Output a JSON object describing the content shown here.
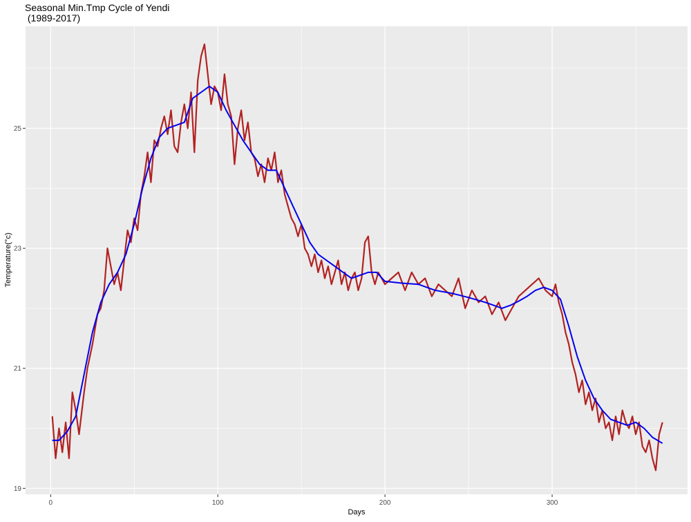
{
  "chart_data": {
    "type": "line",
    "title_line1": "Seasonal Min.Tmp Cycle of Yendi",
    "title_line2": " (1989-2017)",
    "xlabel": "Days",
    "ylabel": "Temperature(°c)",
    "xlim": [
      -15,
      381
    ],
    "ylim": [
      18.9,
      26.7
    ],
    "x_ticks": [
      0,
      100,
      200,
      300
    ],
    "y_ticks": [
      19,
      21,
      23,
      25
    ],
    "x_tick_labels": [
      "0",
      "100",
      "200",
      "300"
    ],
    "y_tick_labels": [
      "19",
      "21",
      "23",
      "25"
    ],
    "grid": true,
    "legend": "none",
    "series": [
      {
        "color": "#B22222",
        "anchors": [
          [
            1,
            20.2
          ],
          [
            3,
            19.5
          ],
          [
            5,
            20.0
          ],
          [
            7,
            19.6
          ],
          [
            9,
            20.1
          ],
          [
            11,
            19.5
          ],
          [
            13,
            20.6
          ],
          [
            15,
            20.3
          ],
          [
            17,
            19.9
          ],
          [
            20,
            20.6
          ],
          [
            22,
            21.0
          ],
          [
            25,
            21.4
          ],
          [
            28,
            21.9
          ],
          [
            30,
            22.0
          ],
          [
            32,
            22.3
          ],
          [
            34,
            23.0
          ],
          [
            36,
            22.7
          ],
          [
            38,
            22.4
          ],
          [
            40,
            22.6
          ],
          [
            42,
            22.3
          ],
          [
            44,
            22.8
          ],
          [
            46,
            23.3
          ],
          [
            48,
            23.1
          ],
          [
            50,
            23.5
          ],
          [
            52,
            23.3
          ],
          [
            54,
            23.9
          ],
          [
            56,
            24.2
          ],
          [
            58,
            24.6
          ],
          [
            60,
            24.1
          ],
          [
            62,
            24.8
          ],
          [
            64,
            24.7
          ],
          [
            66,
            25.0
          ],
          [
            68,
            25.2
          ],
          [
            70,
            24.9
          ],
          [
            72,
            25.3
          ],
          [
            74,
            24.7
          ],
          [
            76,
            24.6
          ],
          [
            78,
            25.1
          ],
          [
            80,
            25.4
          ],
          [
            82,
            25.0
          ],
          [
            84,
            25.6
          ],
          [
            86,
            24.6
          ],
          [
            88,
            25.8
          ],
          [
            90,
            26.2
          ],
          [
            92,
            26.4
          ],
          [
            94,
            25.9
          ],
          [
            96,
            25.4
          ],
          [
            98,
            25.7
          ],
          [
            100,
            25.6
          ],
          [
            102,
            25.3
          ],
          [
            104,
            25.9
          ],
          [
            106,
            25.4
          ],
          [
            108,
            25.2
          ],
          [
            110,
            24.4
          ],
          [
            112,
            25.0
          ],
          [
            114,
            25.3
          ],
          [
            116,
            24.8
          ],
          [
            118,
            25.1
          ],
          [
            120,
            24.6
          ],
          [
            122,
            24.5
          ],
          [
            124,
            24.2
          ],
          [
            126,
            24.4
          ],
          [
            128,
            24.1
          ],
          [
            130,
            24.5
          ],
          [
            132,
            24.3
          ],
          [
            134,
            24.6
          ],
          [
            136,
            24.1
          ],
          [
            138,
            24.3
          ],
          [
            140,
            23.9
          ],
          [
            142,
            23.7
          ],
          [
            144,
            23.5
          ],
          [
            146,
            23.4
          ],
          [
            148,
            23.2
          ],
          [
            150,
            23.4
          ],
          [
            152,
            23.0
          ],
          [
            154,
            22.9
          ],
          [
            156,
            22.7
          ],
          [
            158,
            22.9
          ],
          [
            160,
            22.6
          ],
          [
            162,
            22.8
          ],
          [
            164,
            22.5
          ],
          [
            166,
            22.7
          ],
          [
            168,
            22.4
          ],
          [
            170,
            22.6
          ],
          [
            172,
            22.8
          ],
          [
            174,
            22.4
          ],
          [
            176,
            22.6
          ],
          [
            178,
            22.3
          ],
          [
            180,
            22.5
          ],
          [
            182,
            22.6
          ],
          [
            184,
            22.3
          ],
          [
            186,
            22.5
          ],
          [
            188,
            23.1
          ],
          [
            190,
            23.2
          ],
          [
            192,
            22.6
          ],
          [
            194,
            22.4
          ],
          [
            196,
            22.6
          ],
          [
            198,
            22.5
          ],
          [
            200,
            22.4
          ],
          [
            204,
            22.5
          ],
          [
            208,
            22.6
          ],
          [
            212,
            22.3
          ],
          [
            216,
            22.6
          ],
          [
            220,
            22.4
          ],
          [
            224,
            22.5
          ],
          [
            228,
            22.2
          ],
          [
            232,
            22.4
          ],
          [
            236,
            22.3
          ],
          [
            240,
            22.2
          ],
          [
            244,
            22.5
          ],
          [
            248,
            22.0
          ],
          [
            252,
            22.3
          ],
          [
            256,
            22.1
          ],
          [
            260,
            22.2
          ],
          [
            264,
            21.9
          ],
          [
            268,
            22.1
          ],
          [
            272,
            21.8
          ],
          [
            276,
            22.0
          ],
          [
            280,
            22.2
          ],
          [
            284,
            22.3
          ],
          [
            288,
            22.4
          ],
          [
            292,
            22.5
          ],
          [
            296,
            22.3
          ],
          [
            300,
            22.2
          ],
          [
            302,
            22.4
          ],
          [
            304,
            22.1
          ],
          [
            306,
            21.9
          ],
          [
            308,
            21.6
          ],
          [
            310,
            21.4
          ],
          [
            312,
            21.1
          ],
          [
            314,
            20.9
          ],
          [
            316,
            20.6
          ],
          [
            318,
            20.8
          ],
          [
            320,
            20.4
          ],
          [
            322,
            20.6
          ],
          [
            324,
            20.3
          ],
          [
            326,
            20.5
          ],
          [
            328,
            20.1
          ],
          [
            330,
            20.3
          ],
          [
            332,
            20.0
          ],
          [
            334,
            20.1
          ],
          [
            336,
            19.8
          ],
          [
            338,
            20.2
          ],
          [
            340,
            19.9
          ],
          [
            342,
            20.3
          ],
          [
            344,
            20.1
          ],
          [
            346,
            20.0
          ],
          [
            348,
            20.2
          ],
          [
            350,
            19.9
          ],
          [
            352,
            20.1
          ],
          [
            354,
            19.7
          ],
          [
            356,
            19.6
          ],
          [
            358,
            19.8
          ],
          [
            360,
            19.5
          ],
          [
            362,
            19.3
          ],
          [
            364,
            19.9
          ],
          [
            366,
            20.1
          ]
        ]
      },
      {
        "color": "#0000EE",
        "anchors": [
          [
            1,
            19.8
          ],
          [
            5,
            19.8
          ],
          [
            10,
            19.95
          ],
          [
            15,
            20.2
          ],
          [
            20,
            20.9
          ],
          [
            25,
            21.6
          ],
          [
            30,
            22.1
          ],
          [
            35,
            22.4
          ],
          [
            40,
            22.6
          ],
          [
            45,
            22.9
          ],
          [
            50,
            23.4
          ],
          [
            55,
            24.0
          ],
          [
            60,
            24.5
          ],
          [
            65,
            24.85
          ],
          [
            70,
            25.0
          ],
          [
            75,
            25.05
          ],
          [
            80,
            25.1
          ],
          [
            85,
            25.5
          ],
          [
            90,
            25.6
          ],
          [
            95,
            25.7
          ],
          [
            100,
            25.6
          ],
          [
            105,
            25.3
          ],
          [
            110,
            25.05
          ],
          [
            115,
            24.8
          ],
          [
            120,
            24.6
          ],
          [
            125,
            24.4
          ],
          [
            130,
            24.3
          ],
          [
            135,
            24.3
          ],
          [
            140,
            24.0
          ],
          [
            145,
            23.7
          ],
          [
            150,
            23.4
          ],
          [
            155,
            23.1
          ],
          [
            160,
            22.9
          ],
          [
            165,
            22.8
          ],
          [
            170,
            22.7
          ],
          [
            175,
            22.6
          ],
          [
            180,
            22.5
          ],
          [
            185,
            22.55
          ],
          [
            190,
            22.6
          ],
          [
            195,
            22.6
          ],
          [
            200,
            22.45
          ],
          [
            210,
            22.42
          ],
          [
            220,
            22.4
          ],
          [
            230,
            22.3
          ],
          [
            240,
            22.25
          ],
          [
            250,
            22.18
          ],
          [
            260,
            22.1
          ],
          [
            265,
            22.05
          ],
          [
            270,
            22.0
          ],
          [
            275,
            22.05
          ],
          [
            280,
            22.12
          ],
          [
            285,
            22.2
          ],
          [
            290,
            22.3
          ],
          [
            295,
            22.35
          ],
          [
            300,
            22.3
          ],
          [
            305,
            22.15
          ],
          [
            310,
            21.7
          ],
          [
            315,
            21.2
          ],
          [
            320,
            20.8
          ],
          [
            325,
            20.5
          ],
          [
            330,
            20.3
          ],
          [
            335,
            20.15
          ],
          [
            340,
            20.1
          ],
          [
            345,
            20.05
          ],
          [
            350,
            20.1
          ],
          [
            355,
            20.0
          ],
          [
            360,
            19.85
          ],
          [
            366,
            19.75
          ]
        ]
      }
    ]
  }
}
